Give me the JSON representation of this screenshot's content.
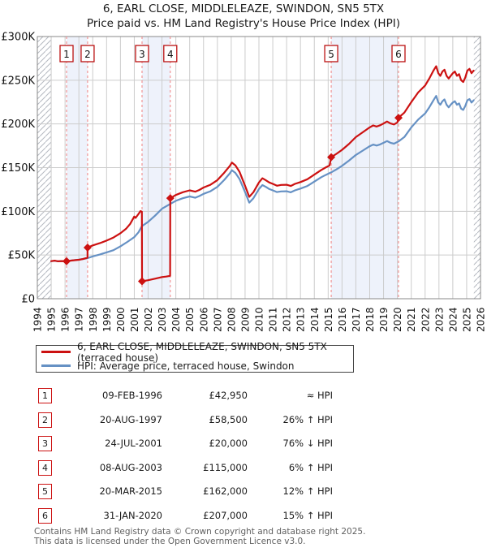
{
  "title": {
    "line1": "6, EARL CLOSE, MIDDLELEAZE, SWINDON, SN5 5TX",
    "line2": "Price paid vs. HM Land Registry's House Price Index (HPI)"
  },
  "legend": {
    "series1": "6, EARL CLOSE, MIDDLELEAZE, SWINDON, SN5 5TX (terraced house)",
    "series2": "HPI: Average price, terraced house, Swindon"
  },
  "colors": {
    "red": "#cc1111",
    "blue": "#6691c4",
    "band": "#eef2fb",
    "grid": "#cccccc",
    "plot_border": "#8a8a8a",
    "dashed_sale_line": "#f08080",
    "hatch": "#b4b8c0",
    "footer_text": "#606060"
  },
  "chart_data": {
    "type": "line",
    "title": "Price paid vs. HM Land Registry's House Price Index (HPI)",
    "xlabel": "",
    "ylabel": "",
    "x_min": 1994,
    "x_max": 2026,
    "y_min": 0,
    "y_max": 300000,
    "grid": true,
    "x_tick_years": [
      1994,
      1995,
      1996,
      1997,
      1998,
      1999,
      2000,
      2001,
      2002,
      2003,
      2004,
      2005,
      2006,
      2007,
      2008,
      2009,
      2010,
      2011,
      2012,
      2013,
      2014,
      2015,
      2016,
      2017,
      2018,
      2019,
      2020,
      2021,
      2022,
      2023,
      2024,
      2025,
      2026
    ],
    "y_ticks": [
      {
        "value_k": 0,
        "label": "£0"
      },
      {
        "value_k": 50,
        "label": "£50K"
      },
      {
        "value_k": 100,
        "label": "£100K"
      },
      {
        "value_k": 150,
        "label": "£150K"
      },
      {
        "value_k": 200,
        "label": "£200K"
      },
      {
        "value_k": 250,
        "label": "£250K"
      },
      {
        "value_k": 300,
        "label": "£300K"
      }
    ],
    "hatch_regions_years": [
      [
        1994,
        1995.0
      ],
      [
        2025.52,
        2026
      ]
    ],
    "sales": [
      {
        "n": "1",
        "date": "09-FEB-1996",
        "price": "£42,950",
        "vs_hpi": "≈ HPI",
        "year": 1996.11,
        "value_k": 42.95
      },
      {
        "n": "2",
        "date": "20-AUG-1997",
        "price": "£58,500",
        "vs_hpi": "26% ↑ HPI",
        "year": 1997.63,
        "value_k": 58.5
      },
      {
        "n": "3",
        "date": "24-JUL-2001",
        "price": "£20,000",
        "vs_hpi": "76% ↓ HPI",
        "year": 2001.56,
        "value_k": 20
      },
      {
        "n": "4",
        "date": "08-AUG-2003",
        "price": "£115,000",
        "vs_hpi": "6% ↑ HPI",
        "year": 2003.6,
        "value_k": 115
      },
      {
        "n": "5",
        "date": "20-MAR-2015",
        "price": "£162,000",
        "vs_hpi": "12% ↑ HPI",
        "year": 2015.22,
        "value_k": 162
      },
      {
        "n": "6",
        "date": "31-JAN-2020",
        "price": "£207,000",
        "vs_hpi": "15% ↑ HPI",
        "year": 2020.08,
        "value_k": 207
      }
    ],
    "series": [
      {
        "name": "6, EARL CLOSE, MIDDLELEAZE, SWINDON, SN5 5TX (terraced house)",
        "color": "#cc1111",
        "points_year_valueK": [
          [
            1995.0,
            43
          ],
          [
            1995.25,
            43.6
          ],
          [
            1995.5,
            42.8
          ],
          [
            1995.75,
            43.1
          ],
          [
            1996.11,
            42.95
          ],
          [
            1996.5,
            43.7
          ],
          [
            1997.0,
            44.6
          ],
          [
            1997.3,
            45.4
          ],
          [
            1997.62,
            47
          ],
          [
            1997.63,
            58.5
          ],
          [
            1998.0,
            61
          ],
          [
            1998.5,
            63.5
          ],
          [
            1999.0,
            66.5
          ],
          [
            1999.5,
            70
          ],
          [
            2000.0,
            75
          ],
          [
            2000.4,
            80
          ],
          [
            2000.7,
            85.5
          ],
          [
            2001.0,
            94
          ],
          [
            2001.1,
            92.5
          ],
          [
            2001.3,
            97
          ],
          [
            2001.45,
            100.3
          ],
          [
            2001.55,
            99.5
          ],
          [
            2001.56,
            20
          ],
          [
            2002.0,
            21.2
          ],
          [
            2002.5,
            22.9
          ],
          [
            2003.0,
            24.8
          ],
          [
            2003.3,
            25.4
          ],
          [
            2003.59,
            26.2
          ],
          [
            2003.6,
            115
          ],
          [
            2004.0,
            118.7
          ],
          [
            2004.5,
            121.9
          ],
          [
            2005.0,
            124
          ],
          [
            2005.4,
            122.5
          ],
          [
            2005.7,
            124.5
          ],
          [
            2006.0,
            127.2
          ],
          [
            2006.5,
            130.4
          ],
          [
            2007.0,
            135.7
          ],
          [
            2007.5,
            144.2
          ],
          [
            2007.9,
            152
          ],
          [
            2008.05,
            155.8
          ],
          [
            2008.3,
            152.6
          ],
          [
            2008.6,
            145.2
          ],
          [
            2009.0,
            129.3
          ],
          [
            2009.3,
            116.6
          ],
          [
            2009.6,
            121.9
          ],
          [
            2010.0,
            133
          ],
          [
            2010.25,
            137.8
          ],
          [
            2010.5,
            135.5
          ],
          [
            2010.75,
            133
          ],
          [
            2011.0,
            131.4
          ],
          [
            2011.3,
            129.3
          ],
          [
            2011.6,
            130.2
          ],
          [
            2012.0,
            130.4
          ],
          [
            2012.3,
            129
          ],
          [
            2012.6,
            131.4
          ],
          [
            2013.0,
            133.5
          ],
          [
            2013.5,
            136.7
          ],
          [
            2014.0,
            142
          ],
          [
            2014.5,
            147.3
          ],
          [
            2014.8,
            150
          ],
          [
            2015.1,
            152.5
          ],
          [
            2015.22,
            162
          ],
          [
            2015.6,
            165.8
          ],
          [
            2016.0,
            170.3
          ],
          [
            2016.5,
            177
          ],
          [
            2017.0,
            184.9
          ],
          [
            2017.5,
            190.5
          ],
          [
            2018.0,
            196.1
          ],
          [
            2018.25,
            198.3
          ],
          [
            2018.5,
            197
          ],
          [
            2018.75,
            198.5
          ],
          [
            2019.0,
            200.5
          ],
          [
            2019.25,
            202.8
          ],
          [
            2019.5,
            200.5
          ],
          [
            2019.75,
            199.4
          ],
          [
            2020.0,
            201.7
          ],
          [
            2020.08,
            207
          ],
          [
            2020.5,
            213
          ],
          [
            2021.0,
            225
          ],
          [
            2021.5,
            236
          ],
          [
            2022.0,
            244
          ],
          [
            2022.3,
            252
          ],
          [
            2022.6,
            261
          ],
          [
            2022.8,
            266
          ],
          [
            2022.95,
            258
          ],
          [
            2023.1,
            255
          ],
          [
            2023.25,
            260
          ],
          [
            2023.4,
            262
          ],
          [
            2023.55,
            255
          ],
          [
            2023.7,
            252
          ],
          [
            2023.85,
            255
          ],
          [
            2024.0,
            258
          ],
          [
            2024.15,
            260
          ],
          [
            2024.3,
            255
          ],
          [
            2024.45,
            257
          ],
          [
            2024.6,
            250
          ],
          [
            2024.75,
            248
          ],
          [
            2024.9,
            253
          ],
          [
            2025.05,
            261
          ],
          [
            2025.2,
            263
          ],
          [
            2025.35,
            258
          ],
          [
            2025.5,
            261
          ]
        ]
      },
      {
        "name": "HPI: Average price, terraced house, Swindon",
        "color": "#6691c4",
        "points_year_valueK": [
          [
            1995.0,
            43
          ],
          [
            1995.25,
            43.4
          ],
          [
            1995.5,
            42.8
          ],
          [
            1995.75,
            43
          ],
          [
            1996.11,
            43
          ],
          [
            1996.5,
            43.8
          ],
          [
            1997.0,
            44.8
          ],
          [
            1997.3,
            45.5
          ],
          [
            1997.63,
            46.4
          ],
          [
            1998.0,
            48.5
          ],
          [
            1998.5,
            50.5
          ],
          [
            1999.0,
            53
          ],
          [
            1999.5,
            55.5
          ],
          [
            2000.0,
            60
          ],
          [
            2000.5,
            65
          ],
          [
            2001.0,
            70.5
          ],
          [
            2001.3,
            76
          ],
          [
            2001.55,
            83
          ],
          [
            2002.0,
            88
          ],
          [
            2002.5,
            95
          ],
          [
            2003.0,
            103
          ],
          [
            2003.6,
            108.5
          ],
          [
            2004.0,
            112
          ],
          [
            2004.5,
            115
          ],
          [
            2005.0,
            117
          ],
          [
            2005.4,
            115.5
          ],
          [
            2005.7,
            117.5
          ],
          [
            2006.0,
            120
          ],
          [
            2006.5,
            123
          ],
          [
            2007.0,
            128
          ],
          [
            2007.5,
            136
          ],
          [
            2007.9,
            143.5
          ],
          [
            2008.05,
            147
          ],
          [
            2008.3,
            144
          ],
          [
            2008.6,
            137
          ],
          [
            2009.0,
            122
          ],
          [
            2009.3,
            110
          ],
          [
            2009.6,
            115
          ],
          [
            2010.0,
            125.5
          ],
          [
            2010.25,
            130
          ],
          [
            2010.5,
            128
          ],
          [
            2010.75,
            125.5
          ],
          [
            2011.0,
            124
          ],
          [
            2011.3,
            122
          ],
          [
            2011.6,
            122.8
          ],
          [
            2012.0,
            123
          ],
          [
            2012.3,
            121.8
          ],
          [
            2012.6,
            124
          ],
          [
            2013.0,
            126
          ],
          [
            2013.5,
            129
          ],
          [
            2014.0,
            134
          ],
          [
            2014.5,
            139
          ],
          [
            2014.8,
            141.5
          ],
          [
            2015.22,
            144.6
          ],
          [
            2015.6,
            148
          ],
          [
            2016.0,
            152
          ],
          [
            2016.5,
            158
          ],
          [
            2017.0,
            164.5
          ],
          [
            2017.5,
            169.5
          ],
          [
            2018.0,
            174.5
          ],
          [
            2018.25,
            176.4
          ],
          [
            2018.5,
            175.3
          ],
          [
            2018.75,
            176.6
          ],
          [
            2019.0,
            178.4
          ],
          [
            2019.25,
            180.4
          ],
          [
            2019.5,
            178.4
          ],
          [
            2019.75,
            177.4
          ],
          [
            2020.08,
            180
          ],
          [
            2020.5,
            185
          ],
          [
            2021.0,
            196
          ],
          [
            2021.5,
            205
          ],
          [
            2022.0,
            212
          ],
          [
            2022.3,
            219
          ],
          [
            2022.6,
            227
          ],
          [
            2022.8,
            232
          ],
          [
            2022.95,
            224.5
          ],
          [
            2023.1,
            222
          ],
          [
            2023.25,
            226
          ],
          [
            2023.4,
            228
          ],
          [
            2023.55,
            222
          ],
          [
            2023.7,
            219
          ],
          [
            2023.85,
            222
          ],
          [
            2024.0,
            224.5
          ],
          [
            2024.15,
            226
          ],
          [
            2024.3,
            222
          ],
          [
            2024.45,
            223.5
          ],
          [
            2024.6,
            217.5
          ],
          [
            2024.75,
            216
          ],
          [
            2024.9,
            220.5
          ],
          [
            2025.05,
            227
          ],
          [
            2025.2,
            228.5
          ],
          [
            2025.35,
            224.5
          ],
          [
            2025.5,
            227
          ]
        ]
      }
    ]
  },
  "footer": {
    "line1": "Contains HM Land Registry data © Crown copyright and database right 2025.",
    "line2": "This data is licensed under the Open Government Licence v3.0."
  }
}
